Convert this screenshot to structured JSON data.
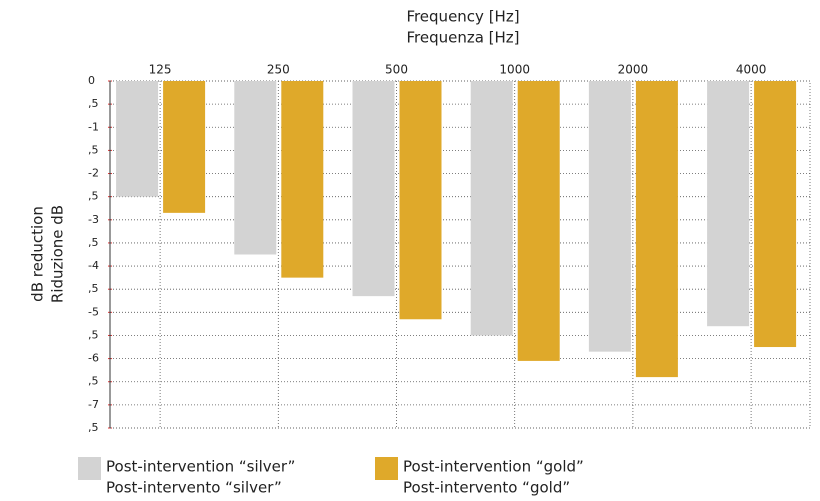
{
  "chart_data": {
    "type": "bar",
    "x_label": [
      "Frequency [Hz]",
      "Frequenza [Hz]"
    ],
    "y_label": [
      "dB reduction",
      "Riduzione dB"
    ],
    "categories": [
      "125",
      "250",
      "500",
      "1000",
      "2000",
      "4000"
    ],
    "series": [
      {
        "name": [
          "Post-intervention “silver”",
          "Post-intervento “silver”"
        ],
        "color": "#d3d3d3",
        "values": [
          -2.5,
          -3.75,
          -4.65,
          -5.5,
          -5.85,
          -5.3
        ]
      },
      {
        "name": [
          "Post-intervention “gold”",
          "Post-intervento “gold”"
        ],
        "color": "#dfa92a",
        "values": [
          -2.85,
          -4.25,
          -5.15,
          -6.05,
          -6.4,
          -5.75
        ]
      }
    ],
    "ylim": [
      0,
      -7.5
    ],
    "yticks": [
      0,
      {
        "value": -0.5,
        "label": ",5"
      },
      -1,
      {
        "value": -1.5,
        "label": ",5"
      },
      -2,
      {
        "value": -2.5,
        "label": ",5"
      },
      -3,
      {
        "value": -3.5,
        "label": ",5"
      },
      -4,
      {
        "value": -4.5,
        "label": ",5"
      },
      -5,
      {
        "value": -5.5,
        "label": ",5"
      },
      -6,
      {
        "value": -6.5,
        "label": ",5"
      },
      -7,
      {
        "value": -7.5,
        "label": ",5"
      }
    ],
    "grid": true
  }
}
